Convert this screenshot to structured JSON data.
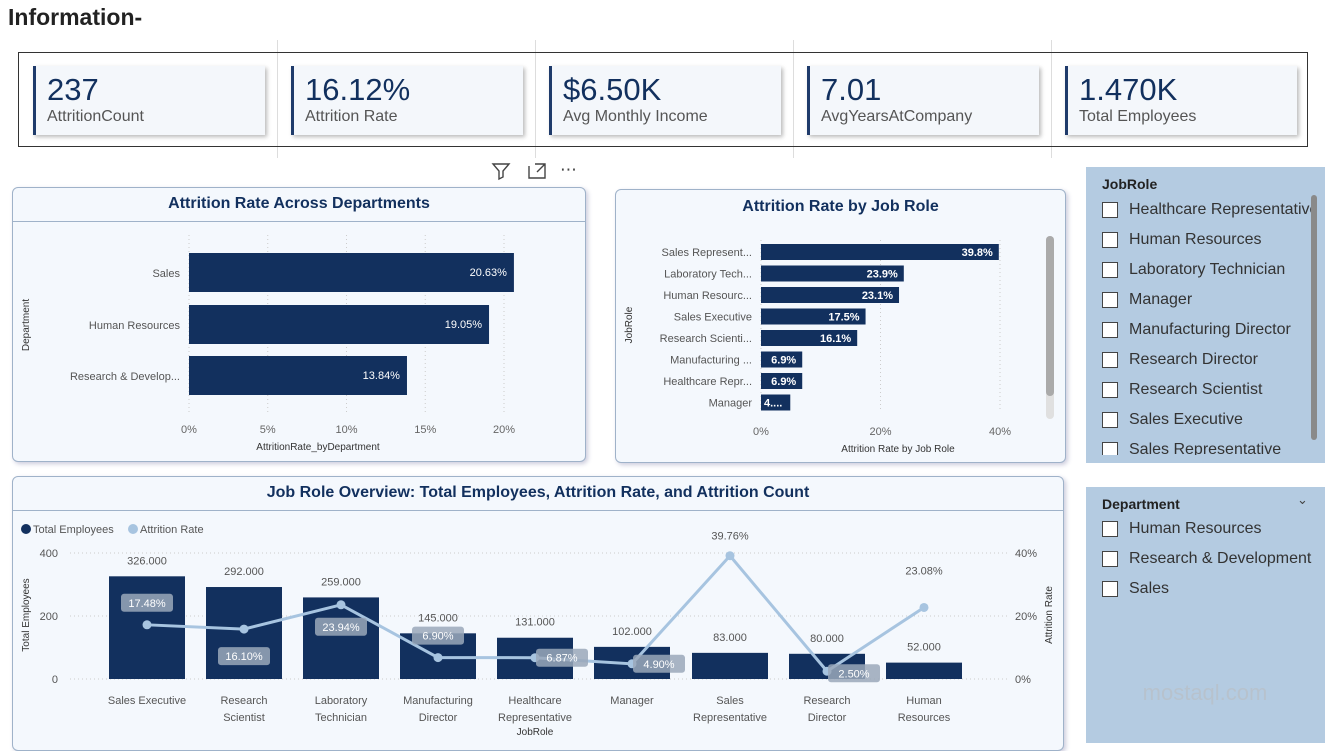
{
  "header": {
    "title": "Information-"
  },
  "kpis": [
    {
      "value": "237",
      "label": "AttritionCount"
    },
    {
      "value": "16.12%",
      "label": "Attrition Rate"
    },
    {
      "value": "$6.50K",
      "label": "Avg Monthly Income"
    },
    {
      "value": "7.01",
      "label": "AvgYearsAtCompany"
    },
    {
      "value": "1.470K",
      "label": "Total Employees"
    }
  ],
  "toolbar": {
    "icons": [
      "filter-icon",
      "focus-mode-icon",
      "more-options-icon"
    ]
  },
  "slicers": {
    "jobrole": {
      "title": "JobRole",
      "items": [
        "Healthcare Representative",
        "Human Resources",
        "Laboratory Technician",
        "Manager",
        "Manufacturing Director",
        "Research Director",
        "Research Scientist",
        "Sales Executive",
        "Sales Representative"
      ]
    },
    "department": {
      "title": "Department",
      "items": [
        "Human Resources",
        "Research & Development",
        "Sales"
      ]
    }
  },
  "colors": {
    "bar": "#12305e",
    "line": "#a7c4e0",
    "slicer_bg": "#b4cbe1"
  },
  "chart_data": [
    {
      "type": "bar",
      "orientation": "horizontal",
      "title": "Attrition Rate Across Departments",
      "xlabel": "AttritionRate_byDepartment",
      "ylabel": "Department",
      "categories": [
        "Sales",
        "Human Resources",
        "Research & Develop..."
      ],
      "values": [
        20.63,
        19.05,
        13.84
      ],
      "data_labels": [
        "20.63%",
        "19.05%",
        "13.84%"
      ],
      "xlim": [
        0,
        22
      ],
      "ticks": [
        "0%",
        "5%",
        "10%",
        "15%",
        "20%"
      ],
      "grid": true
    },
    {
      "type": "bar",
      "orientation": "horizontal",
      "title": "Attrition Rate by Job Role",
      "xlabel": "Attrition Rate by Job Role",
      "ylabel": "JobRole",
      "categories": [
        "Sales Represent...",
        "Laboratory Tech...",
        "Human Resourc...",
        "Sales Executive",
        "Research Scienti...",
        "Manufacturing ...",
        "Healthcare Repr...",
        "Manager"
      ],
      "values": [
        39.8,
        23.9,
        23.1,
        17.5,
        16.1,
        6.9,
        6.9,
        4.9
      ],
      "data_labels": [
        "39.8%",
        "23.9%",
        "23.1%",
        "17.5%",
        "16.1%",
        "6.9%",
        "6.9%",
        "4...."
      ],
      "xlim": [
        0,
        45
      ],
      "ticks": [
        "0%",
        "20%",
        "40%"
      ],
      "grid": true
    },
    {
      "type": "bar+line",
      "title": "Job Role Overview: Total Employees, Attrition Rate, and Attrition Count",
      "xlabel": "JobRole",
      "ylabel": "Total Employees",
      "y2label": "Attrition Rate",
      "categories": [
        [
          "Sales Executive"
        ],
        [
          "Research",
          "Scientist"
        ],
        [
          "Laboratory",
          "Technician"
        ],
        [
          "Manufacturing",
          "Director"
        ],
        [
          "Healthcare",
          "Representative"
        ],
        [
          "Manager"
        ],
        [
          "Sales",
          "Representative"
        ],
        [
          "Research",
          "Director"
        ],
        [
          "Human",
          "Resources"
        ]
      ],
      "series": [
        {
          "name": "Total Employees",
          "values": [
            326,
            292,
            259,
            145,
            131,
            102,
            83,
            80,
            52
          ],
          "data_labels": [
            "326.000",
            "292.000",
            "259.000",
            "145.000",
            "131.000",
            "102.000",
            "83.000",
            "80.000",
            "52.000"
          ]
        },
        {
          "name": "Attrition Rate",
          "values": [
            17.48,
            16.1,
            23.94,
            6.9,
            6.87,
            4.9,
            39.76,
            2.5,
            23.08
          ],
          "data_labels": [
            "17.48%",
            "16.10%",
            "23.94%",
            "6.90%",
            "6.87%",
            "4.90%",
            "39.76%",
            "2.50%",
            "23.08%"
          ]
        }
      ],
      "ylim": [
        0,
        400
      ],
      "y2lim": [
        0,
        40
      ],
      "yticks": [
        "0",
        "200",
        "400"
      ],
      "y2ticks": [
        "0%",
        "20%",
        "40%"
      ],
      "legend": "top-left",
      "grid": true
    }
  ],
  "watermark": "mostaql.com"
}
